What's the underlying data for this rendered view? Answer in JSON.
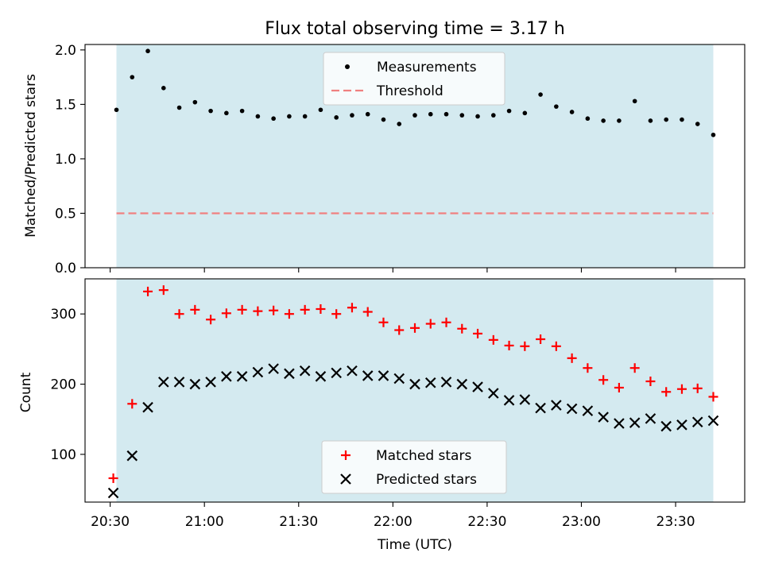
{
  "title": "Flux total observing time = 3.17 h",
  "xlabel": "Time (UTC)",
  "x_ticks": [
    {
      "t": 30,
      "label": "20:30"
    },
    {
      "t": 60,
      "label": "21:00"
    },
    {
      "t": 90,
      "label": "21:30"
    },
    {
      "t": 120,
      "label": "22:00"
    },
    {
      "t": 150,
      "label": "22:30"
    },
    {
      "t": 180,
      "label": "23:00"
    },
    {
      "t": 210,
      "label": "23:30"
    }
  ],
  "colors": {
    "observing_band": "#d4eaf0",
    "threshold": "#f08080",
    "matched": "#ff0000",
    "predicted": "#000000",
    "measurement": "#000000"
  },
  "chart_data": [
    {
      "type": "scatter",
      "ylabel": "Matched/Predicted stars",
      "ylim": [
        0,
        2.05
      ],
      "y_ticks": [
        "0.0",
        "0.5",
        "1.0",
        "1.5",
        "2.0"
      ],
      "x_range": [
        "20:22",
        "23:52"
      ],
      "observing_window": [
        "20:32",
        "23:42"
      ],
      "legend": {
        "placement": "upper center",
        "entries": [
          "Measurements",
          "Threshold"
        ]
      },
      "threshold": 0.5,
      "series": [
        {
          "name": "Measurements",
          "x": [
            "20:32",
            "20:37",
            "20:42",
            "20:47",
            "20:52",
            "20:57",
            "21:02",
            "21:07",
            "21:12",
            "21:17",
            "21:22",
            "21:27",
            "21:32",
            "21:37",
            "21:42",
            "21:47",
            "21:52",
            "21:57",
            "22:02",
            "22:07",
            "22:12",
            "22:17",
            "22:22",
            "22:27",
            "22:32",
            "22:37",
            "22:42",
            "22:47",
            "22:52",
            "22:57",
            "23:02",
            "23:07",
            "23:12",
            "23:17",
            "23:22",
            "23:27",
            "23:32",
            "23:37",
            "23:42"
          ],
          "y": [
            1.45,
            1.75,
            1.99,
            1.65,
            1.47,
            1.52,
            1.44,
            1.42,
            1.44,
            1.39,
            1.37,
            1.39,
            1.39,
            1.45,
            1.38,
            1.4,
            1.41,
            1.36,
            1.32,
            1.4,
            1.41,
            1.41,
            1.4,
            1.39,
            1.4,
            1.44,
            1.42,
            1.59,
            1.48,
            1.43,
            1.37,
            1.35,
            1.35,
            1.53,
            1.35,
            1.36,
            1.36,
            1.32,
            1.22
          ]
        }
      ]
    },
    {
      "type": "scatter",
      "ylabel": "Count",
      "ylim": [
        32,
        350
      ],
      "y_ticks": [
        "100",
        "200",
        "300"
      ],
      "x_range": [
        "20:22",
        "23:52"
      ],
      "observing_window": [
        "20:32",
        "23:42"
      ],
      "legend": {
        "placement": "lower center",
        "entries": [
          "Matched stars",
          "Predicted stars"
        ]
      },
      "series": [
        {
          "name": "Matched stars",
          "x": [
            "20:31",
            "20:37",
            "20:42",
            "20:47",
            "20:52",
            "20:57",
            "21:02",
            "21:07",
            "21:12",
            "21:17",
            "21:22",
            "21:27",
            "21:32",
            "21:37",
            "21:42",
            "21:47",
            "21:52",
            "21:57",
            "22:02",
            "22:07",
            "22:12",
            "22:17",
            "22:22",
            "22:27",
            "22:32",
            "22:37",
            "22:42",
            "22:47",
            "22:52",
            "22:57",
            "23:02",
            "23:07",
            "23:12",
            "23:17",
            "23:22",
            "23:27",
            "23:32",
            "23:37",
            "23:42"
          ],
          "y": [
            66,
            172,
            332,
            334,
            300,
            306,
            292,
            301,
            306,
            304,
            305,
            300,
            306,
            307,
            300,
            309,
            303,
            288,
            277,
            280,
            286,
            288,
            279,
            272,
            263,
            255,
            254,
            264,
            254,
            237,
            223,
            206,
            195,
            223,
            204,
            189,
            193,
            194,
            182
          ]
        },
        {
          "name": "Predicted stars",
          "x": [
            "20:31",
            "20:37",
            "20:42",
            "20:47",
            "20:52",
            "20:57",
            "21:02",
            "21:07",
            "21:12",
            "21:17",
            "21:22",
            "21:27",
            "21:32",
            "21:37",
            "21:42",
            "21:47",
            "21:52",
            "21:57",
            "22:02",
            "22:07",
            "22:12",
            "22:17",
            "22:22",
            "22:27",
            "22:32",
            "22:37",
            "22:42",
            "22:47",
            "22:52",
            "22:57",
            "23:02",
            "23:07",
            "23:12",
            "23:17",
            "23:22",
            "23:27",
            "23:32",
            "23:37",
            "23:42"
          ],
          "y": [
            45,
            98,
            167,
            203,
            203,
            200,
            203,
            211,
            211,
            217,
            222,
            215,
            219,
            211,
            216,
            219,
            212,
            212,
            208,
            200,
            202,
            203,
            200,
            196,
            187,
            177,
            178,
            166,
            170,
            165,
            162,
            153,
            144,
            145,
            151,
            140,
            142,
            146,
            148
          ]
        }
      ]
    }
  ]
}
